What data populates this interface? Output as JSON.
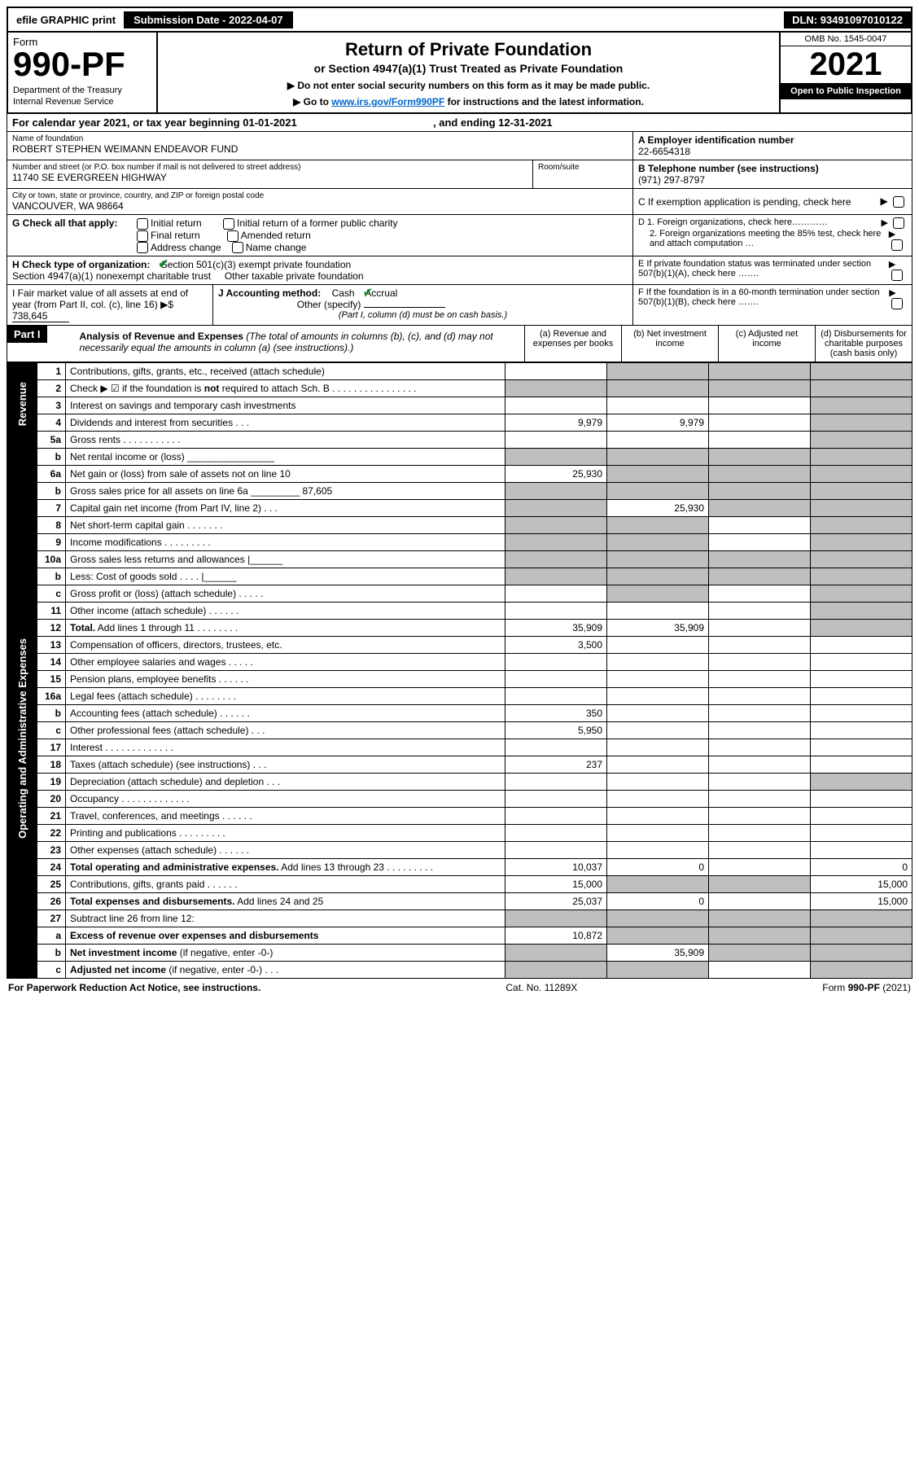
{
  "topbar": {
    "efile": "efile GRAPHIC print",
    "sub_label": "Submission Date - ",
    "sub_date": "2022-04-07",
    "dln_label": "DLN: ",
    "dln": "93491097010122"
  },
  "formcell": {
    "form": "Form",
    "number": "990-PF",
    "dept1": "Department of the Treasury",
    "dept2": "Internal Revenue Service"
  },
  "title": {
    "main": "Return of Private Foundation",
    "sub": "or Section 4947(a)(1) Trust Treated as Private Foundation",
    "l1": "▶ Do not enter social security numbers on this form as it may be made public.",
    "l2_pre": "▶ Go to ",
    "l2_link": "www.irs.gov/Form990PF",
    "l2_post": " for instructions and the latest information."
  },
  "yearcell": {
    "omb": "OMB No. 1545-0047",
    "year": "2021",
    "open": "Open to Public Inspection"
  },
  "cal": {
    "pre": "For calendar year 2021, or tax year beginning ",
    "b": "01-01-2021",
    "mid": ", and ending ",
    "e": "12-31-2021"
  },
  "A": {
    "lbl": "Name of foundation",
    "val": "ROBERT STEPHEN WEIMANN ENDEAVOR FUND",
    "ein_lbl": "A Employer identification number",
    "ein": "22-6654318"
  },
  "addr": {
    "lbl": "Number and street (or P.O. box number if mail is not delivered to street address)",
    "val": "11740 SE EVERGREEN HIGHWAY",
    "room": "Room/suite"
  },
  "B": {
    "lbl": "B Telephone number (see instructions)",
    "val": "(971) 297-8797"
  },
  "city": {
    "lbl": "City or town, state or province, country, and ZIP or foreign postal code",
    "val": "VANCOUVER, WA  98664"
  },
  "C": "C If exemption application is pending, check here",
  "G": {
    "lbl": "G Check all that apply:",
    "o": [
      "Initial return",
      "Final return",
      "Address change",
      "Initial return of a former public charity",
      "Amended return",
      "Name change"
    ]
  },
  "D": {
    "d1": "D 1. Foreign organizations, check here…………",
    "d2": "2. Foreign organizations meeting the 85% test, check here and attach computation …"
  },
  "H": {
    "lbl": "H Check type of organization:",
    "o1": "Section 501(c)(3) exempt private foundation",
    "o2": "Section 4947(a)(1) nonexempt charitable trust",
    "o3": "Other taxable private foundation"
  },
  "E": "E If private foundation status was terminated under section 507(b)(1)(A), check here …….",
  "I": {
    "lbl": "I Fair market value of all assets at end of year (from Part II, col. (c), line 16)",
    "arrow": "▶$",
    "val": "738,645"
  },
  "J": {
    "lbl": "J Accounting method:",
    "o": [
      "Cash",
      "Accrual",
      "Other (specify)"
    ],
    "note": "(Part I, column (d) must be on cash basis.)"
  },
  "F": "F If the foundation is in a 60-month termination under section 507(b)(1)(B), check here …….",
  "part1": {
    "tag": "Part I",
    "title": "Analysis of Revenue and Expenses",
    "paren": "(The total of amounts in columns (b), (c), and (d) may not necessarily equal the amounts in column (a) (see instructions).)",
    "cols": [
      "(a) Revenue and expenses per books",
      "(b) Net investment income",
      "(c) Adjusted net income",
      "(d) Disbursements for charitable purposes (cash basis only)"
    ]
  },
  "sec": {
    "rev": "Revenue",
    "op": "Operating and Administrative Expenses"
  },
  "rows": [
    {
      "n": "1",
      "d": "Contributions, gifts, grants, etc., received (attach schedule)",
      "a": "",
      "b": "sh",
      "c": "sh",
      "dd": "sh"
    },
    {
      "n": "2",
      "d": "Check ▶ ☑ if the foundation is <b>not</b> required to attach Sch. B   .   .   .   .   .   .   .   .   .   .   .   .   .   .   .   .",
      "a": "sh",
      "b": "sh",
      "c": "sh",
      "dd": "sh"
    },
    {
      "n": "3",
      "d": "Interest on savings and temporary cash investments",
      "a": "",
      "b": "",
      "c": "",
      "dd": "sh"
    },
    {
      "n": "4",
      "d": "Dividends and interest from securities   .   .   .",
      "a": "9,979",
      "b": "9,979",
      "c": "",
      "dd": "sh"
    },
    {
      "n": "5a",
      "d": "Gross rents   .   .   .   .   .   .   .   .   .   .   .",
      "a": "",
      "b": "",
      "c": "",
      "dd": "sh"
    },
    {
      "n": "b",
      "d": "Net rental income or (loss) ________________",
      "a": "sh",
      "b": "sh",
      "c": "sh",
      "dd": "sh"
    },
    {
      "n": "6a",
      "d": "Net gain or (loss) from sale of assets not on line 10",
      "a": "25,930",
      "b": "sh",
      "c": "sh",
      "dd": "sh"
    },
    {
      "n": "b",
      "d": "Gross sales price for all assets on line 6a _________ 87,605",
      "a": "sh",
      "b": "sh",
      "c": "sh",
      "dd": "sh"
    },
    {
      "n": "7",
      "d": "Capital gain net income (from Part IV, line 2)   .   .   .",
      "a": "sh",
      "b": "25,930",
      "c": "sh",
      "dd": "sh"
    },
    {
      "n": "8",
      "d": "Net short-term capital gain   .   .   .   .   .   .   .",
      "a": "sh",
      "b": "sh",
      "c": "",
      "dd": "sh"
    },
    {
      "n": "9",
      "d": "Income modifications   .   .   .   .   .   .   .   .   .",
      "a": "sh",
      "b": "sh",
      "c": "",
      "dd": "sh"
    },
    {
      "n": "10a",
      "d": "Gross sales less returns and allowances  |______",
      "a": "sh",
      "b": "sh",
      "c": "sh",
      "dd": "sh"
    },
    {
      "n": "b",
      "d": "Less: Cost of goods sold   .   .   .   .   |______",
      "a": "sh",
      "b": "sh",
      "c": "sh",
      "dd": "sh"
    },
    {
      "n": "c",
      "d": "Gross profit or (loss) (attach schedule)   .   .   .   .   .",
      "a": "",
      "b": "sh",
      "c": "",
      "dd": "sh"
    },
    {
      "n": "11",
      "d": "Other income (attach schedule)   .   .   .   .   .   .",
      "a": "",
      "b": "",
      "c": "",
      "dd": "sh"
    },
    {
      "n": "12",
      "d": "<b>Total.</b> Add lines 1 through 11   .   .   .   .   .   .   .   .",
      "a": "35,909",
      "b": "35,909",
      "c": "",
      "dd": "sh"
    },
    {
      "n": "13",
      "d": "Compensation of officers, directors, trustees, etc.",
      "a": "3,500",
      "b": "",
      "c": "",
      "dd": ""
    },
    {
      "n": "14",
      "d": "Other employee salaries and wages   .   .   .   .   .",
      "a": "",
      "b": "",
      "c": "",
      "dd": ""
    },
    {
      "n": "15",
      "d": "Pension plans, employee benefits   .   .   .   .   .   .",
      "a": "",
      "b": "",
      "c": "",
      "dd": ""
    },
    {
      "n": "16a",
      "d": "Legal fees (attach schedule)   .   .   .   .   .   .   .   .",
      "a": "",
      "b": "",
      "c": "",
      "dd": ""
    },
    {
      "n": "b",
      "d": "Accounting fees (attach schedule)   .   .   .   .   .   .",
      "a": "350",
      "b": "",
      "c": "",
      "dd": ""
    },
    {
      "n": "c",
      "d": "Other professional fees (attach schedule)   .   .   .",
      "a": "5,950",
      "b": "",
      "c": "",
      "dd": ""
    },
    {
      "n": "17",
      "d": "Interest   .   .   .   .   .   .   .   .   .   .   .   .   .",
      "a": "",
      "b": "",
      "c": "",
      "dd": ""
    },
    {
      "n": "18",
      "d": "Taxes (attach schedule) (see instructions)   .   .   .",
      "a": "237",
      "b": "",
      "c": "",
      "dd": ""
    },
    {
      "n": "19",
      "d": "Depreciation (attach schedule) and depletion   .   .   .",
      "a": "",
      "b": "",
      "c": "",
      "dd": "sh"
    },
    {
      "n": "20",
      "d": "Occupancy   .   .   .   .   .   .   .   .   .   .   .   .   .",
      "a": "",
      "b": "",
      "c": "",
      "dd": ""
    },
    {
      "n": "21",
      "d": "Travel, conferences, and meetings   .   .   .   .   .   .",
      "a": "",
      "b": "",
      "c": "",
      "dd": ""
    },
    {
      "n": "22",
      "d": "Printing and publications   .   .   .   .   .   .   .   .   .",
      "a": "",
      "b": "",
      "c": "",
      "dd": ""
    },
    {
      "n": "23",
      "d": "Other expenses (attach schedule)   .   .   .   .   .   .",
      "a": "",
      "b": "",
      "c": "",
      "dd": ""
    },
    {
      "n": "24",
      "d": "<b>Total operating and administrative expenses.</b> Add lines 13 through 23   .   .   .   .   .   .   .   .   .",
      "a": "10,037",
      "b": "0",
      "c": "",
      "dd": "0"
    },
    {
      "n": "25",
      "d": "Contributions, gifts, grants paid   .   .   .   .   .   .",
      "a": "15,000",
      "b": "sh",
      "c": "sh",
      "dd": "15,000"
    },
    {
      "n": "26",
      "d": "<b>Total expenses and disbursements.</b> Add lines 24 and 25",
      "a": "25,037",
      "b": "0",
      "c": "",
      "dd": "15,000"
    },
    {
      "n": "27",
      "d": "Subtract line 26 from line 12:",
      "a": "sh",
      "b": "sh",
      "c": "sh",
      "dd": "sh"
    },
    {
      "n": "a",
      "d": "<b>Excess of revenue over expenses and disbursements</b>",
      "a": "10,872",
      "b": "sh",
      "c": "sh",
      "dd": "sh"
    },
    {
      "n": "b",
      "d": "<b>Net investment income</b> (if negative, enter -0-)",
      "a": "sh",
      "b": "35,909",
      "c": "sh",
      "dd": "sh"
    },
    {
      "n": "c",
      "d": "<b>Adjusted net income</b> (if negative, enter -0-)   .   .   .",
      "a": "sh",
      "b": "sh",
      "c": "",
      "dd": "sh"
    }
  ],
  "footer": {
    "l": "For Paperwork Reduction Act Notice, see instructions.",
    "c": "Cat. No. 11289X",
    "r": "Form 990-PF (2021)"
  }
}
